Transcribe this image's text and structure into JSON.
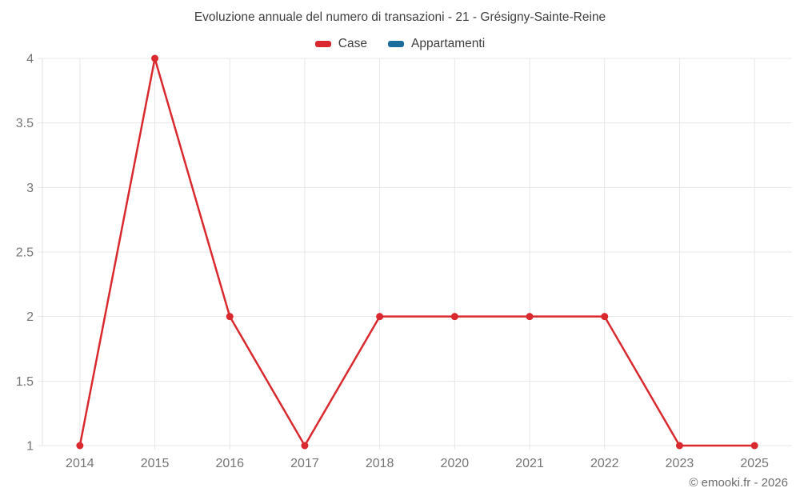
{
  "chart_data": {
    "type": "line",
    "title": "Evoluzione annuale del numero di transazioni - 21 - Grésigny-Sainte-Reine",
    "categories": [
      "2014",
      "2015",
      "2016",
      "2017",
      "2018",
      "2020",
      "2021",
      "2022",
      "2023",
      "2025"
    ],
    "series": [
      {
        "name": "Case",
        "color": "#d9292f",
        "values": [
          1,
          4,
          2,
          1,
          2,
          2,
          2,
          2,
          1,
          1
        ]
      },
      {
        "name": "Appartamenti",
        "color": "#1a6d9c",
        "values": []
      }
    ],
    "y_ticks": [
      4,
      3.5,
      3,
      2.5,
      2,
      1.5,
      1
    ],
    "ylim": [
      1,
      4
    ],
    "grid": true,
    "legend_position": "top",
    "xlabel": "",
    "ylabel": ""
  },
  "footer": {
    "copyright": "© emooki.fr - 2026"
  },
  "colors": {
    "gridline": "#e7e7e7",
    "axis_line": "#e2e2e2",
    "axis_text": "#757575"
  }
}
